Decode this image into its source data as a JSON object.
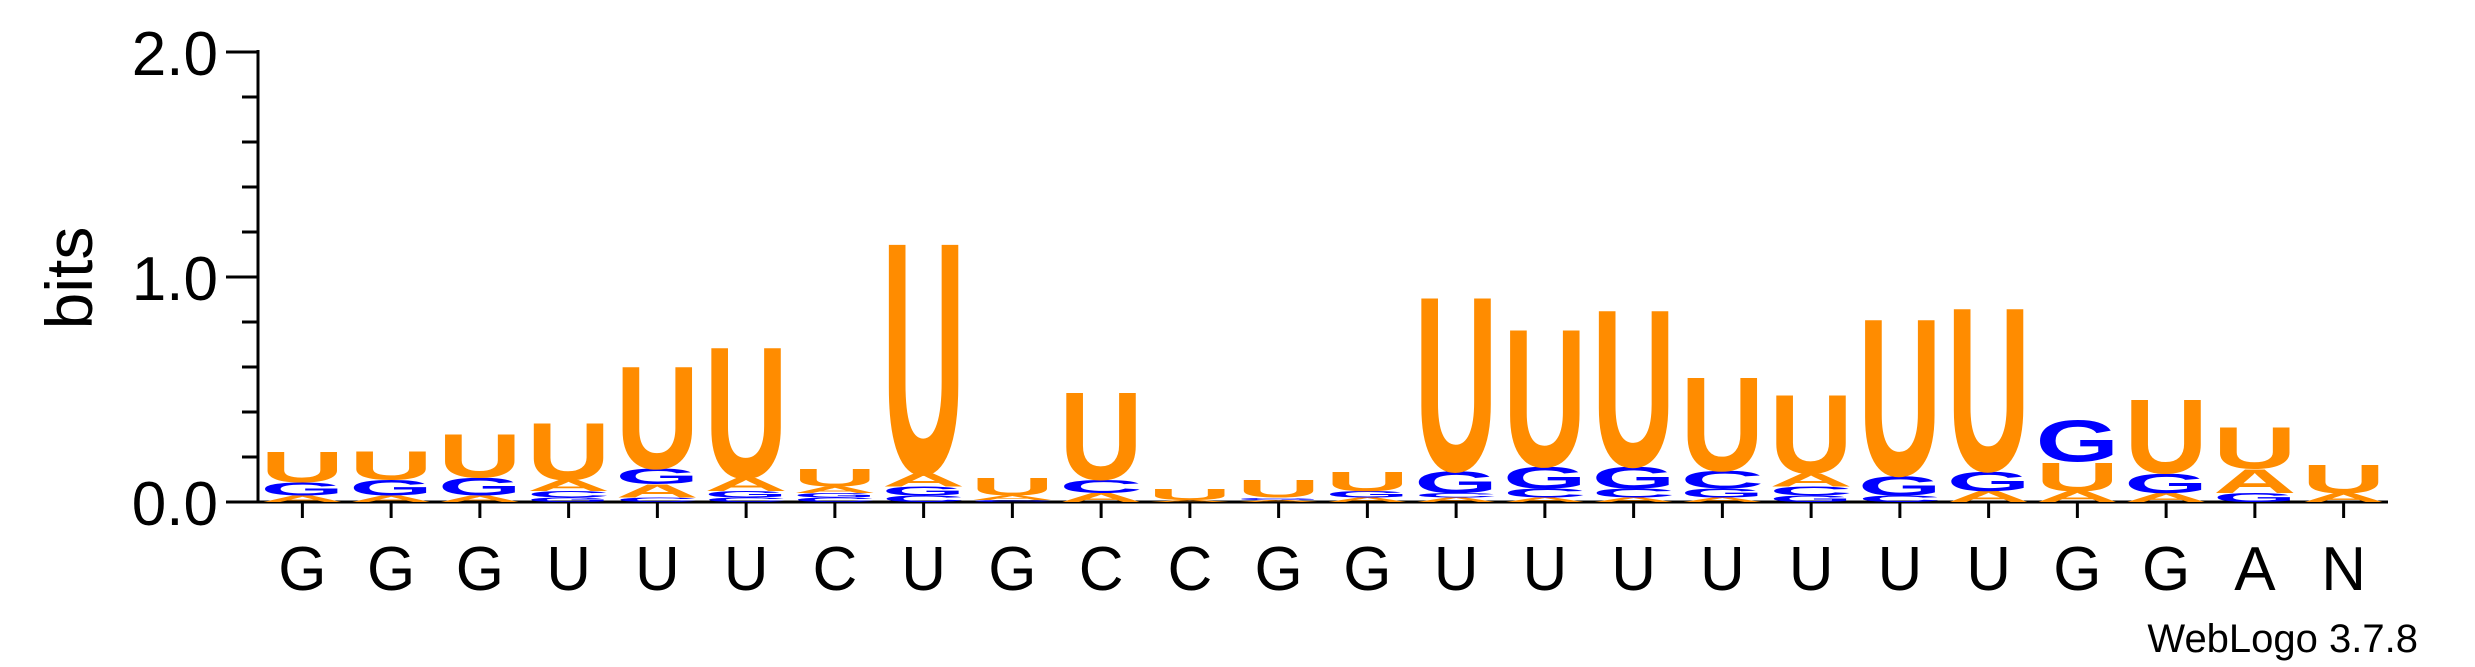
{
  "chart_data": {
    "type": "sequence-logo",
    "ylabel": "bits",
    "ylim": [
      0,
      2.0
    ],
    "y_ticks": [
      "0.0",
      "1.0",
      "2.0"
    ],
    "categories": [
      "G",
      "G",
      "G",
      "U",
      "U",
      "U",
      "C",
      "U",
      "G",
      "C",
      "C",
      "G",
      "G",
      "U",
      "U",
      "U",
      "U",
      "U",
      "U",
      "U",
      "G",
      "G",
      "A",
      "N"
    ],
    "colors": {
      "U": "#ff8c00",
      "A": "#ff8c00",
      "G": "#0000ff",
      "C": "#0000ff"
    },
    "positions": [
      [
        [
          "A",
          0.03
        ],
        [
          "G",
          0.06
        ],
        [
          "U",
          0.14
        ]
      ],
      [
        [
          "A",
          0.03
        ],
        [
          "G",
          0.07
        ],
        [
          "U",
          0.13
        ]
      ],
      [
        [
          "A",
          0.03
        ],
        [
          "G",
          0.08
        ],
        [
          "U",
          0.2
        ]
      ],
      [
        [
          "G",
          0.02
        ],
        [
          "C",
          0.03
        ],
        [
          "A",
          0.05
        ],
        [
          "U",
          0.26
        ]
      ],
      [
        [
          "C",
          0.02
        ],
        [
          "A",
          0.06
        ],
        [
          "G",
          0.07
        ],
        [
          "U",
          0.47
        ]
      ],
      [
        [
          "C",
          0.02
        ],
        [
          "G",
          0.03
        ],
        [
          "A",
          0.06
        ],
        [
          "U",
          0.6
        ]
      ],
      [
        [
          "C",
          0.02
        ],
        [
          "G",
          0.02
        ],
        [
          "A",
          0.03
        ],
        [
          "U",
          0.08
        ]
      ],
      [
        [
          "C",
          0.03
        ],
        [
          "G",
          0.04
        ],
        [
          "A",
          0.06
        ],
        [
          "U",
          1.06
        ]
      ],
      [
        [
          "C",
          0.01
        ],
        [
          "A",
          0.02
        ],
        [
          "U",
          0.08
        ]
      ],
      [
        [
          "A",
          0.04
        ],
        [
          "C",
          0.06
        ],
        [
          "U",
          0.4
        ]
      ],
      [
        [
          "A",
          0.01
        ],
        [
          "U",
          0.05
        ]
      ],
      [
        [
          "A",
          0.01
        ],
        [
          "G",
          0.01
        ],
        [
          "U",
          0.08
        ]
      ],
      [
        [
          "A",
          0.02
        ],
        [
          "G",
          0.03
        ],
        [
          "U",
          0.09
        ]
      ],
      [
        [
          "A",
          0.02
        ],
        [
          "C",
          0.02
        ],
        [
          "G",
          0.1
        ],
        [
          "U",
          0.8
        ]
      ],
      [
        [
          "A",
          0.02
        ],
        [
          "C",
          0.04
        ],
        [
          "G",
          0.1
        ],
        [
          "U",
          0.63
        ]
      ],
      [
        [
          "A",
          0.02
        ],
        [
          "C",
          0.04
        ],
        [
          "G",
          0.1
        ],
        [
          "U",
          0.72
        ]
      ],
      [
        [
          "A",
          0.02
        ],
        [
          "G",
          0.04
        ],
        [
          "C",
          0.08
        ],
        [
          "U",
          0.43
        ]
      ],
      [
        [
          "G",
          0.03
        ],
        [
          "C",
          0.04
        ],
        [
          "A",
          0.06
        ],
        [
          "U",
          0.36
        ]
      ],
      [
        [
          "C",
          0.03
        ],
        [
          "G",
          0.09
        ],
        [
          "U",
          0.72
        ]
      ],
      [
        [
          "A",
          0.05
        ],
        [
          "G",
          0.09
        ],
        [
          "U",
          0.75
        ]
      ],
      [
        [
          "A",
          0.05
        ],
        [
          "U",
          0.13
        ],
        [
          "G",
          0.19
        ]
      ],
      [
        [
          "A",
          0.04
        ],
        [
          "G",
          0.09
        ],
        [
          "U",
          0.34
        ]
      ],
      [
        [
          "G",
          0.04
        ],
        [
          "A",
          0.11
        ],
        [
          "U",
          0.19
        ]
      ],
      [
        [
          "A",
          0.04
        ],
        [
          "U",
          0.13
        ]
      ]
    ]
  },
  "footer": {
    "credit": "WebLogo 3.7.8"
  }
}
